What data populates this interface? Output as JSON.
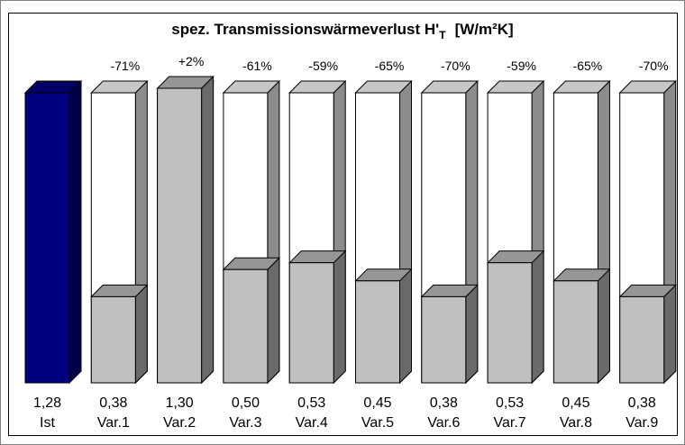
{
  "chart_data": {
    "type": "bar3d",
    "title": "spez. Transmissionswärmeverlust H'",
    "title_subscript": "T",
    "title_unit": "[W/m²K]",
    "categories": [
      "Ist",
      "Var.1",
      "Var.2",
      "Var.3",
      "Var.4",
      "Var.5",
      "Var.6",
      "Var.7",
      "Var.8",
      "Var.9"
    ],
    "values": [
      1.28,
      0.38,
      1.3,
      0.5,
      0.53,
      0.45,
      0.38,
      0.53,
      0.45,
      0.38
    ],
    "value_labels": [
      "1,28",
      "0,38",
      "1,30",
      "0,50",
      "0,53",
      "0,45",
      "0,38",
      "0,53",
      "0,45",
      "0,38"
    ],
    "change_labels": [
      null,
      "-71%",
      "+2%",
      "-61%",
      "-59%",
      "-65%",
      "-70%",
      "-59%",
      "-65%",
      "-70%"
    ],
    "colors": [
      "#000080",
      "#c0c0c0",
      "#c0c0c0",
      "#c0c0c0",
      "#c0c0c0",
      "#c0c0c0",
      "#c0c0c0",
      "#c0c0c0",
      "#c0c0c0",
      "#c0c0c0"
    ],
    "reference_color": "#ffffff"
  }
}
